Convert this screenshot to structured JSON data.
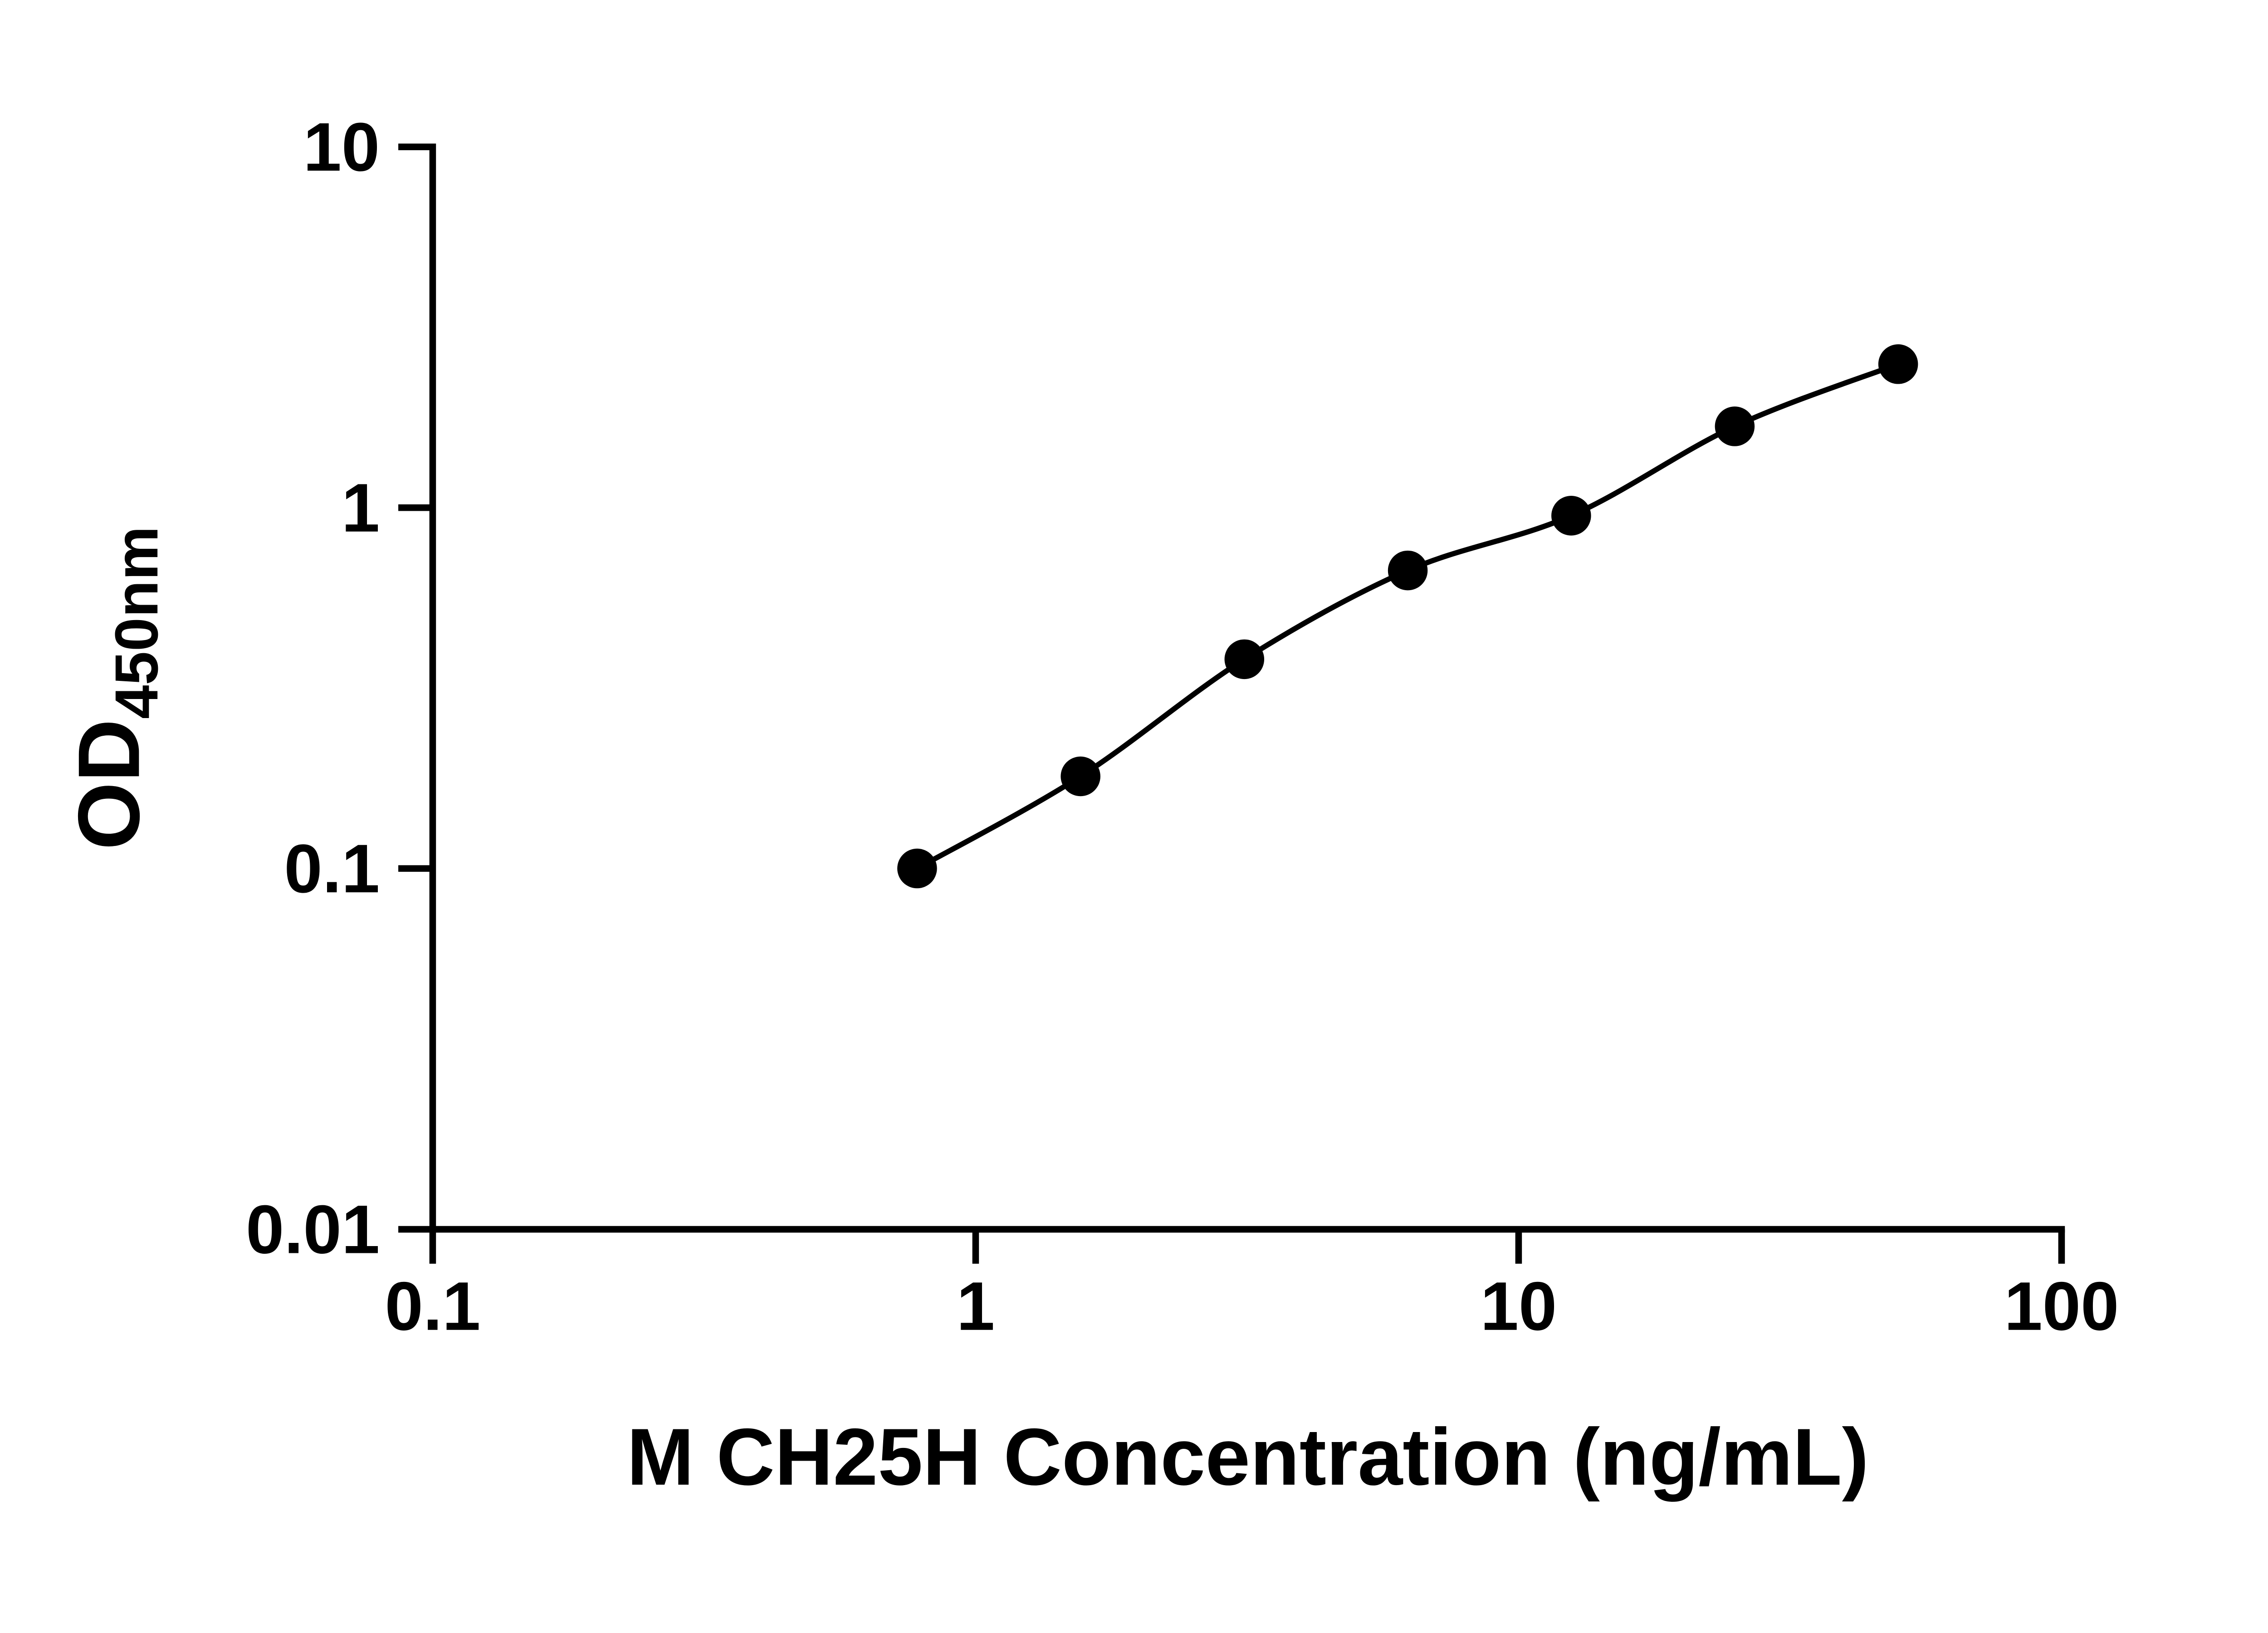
{
  "chart_data": {
    "type": "scatter",
    "title": "",
    "xlabel": "M CH25H Concentration (ng/mL)",
    "ylabel_main": "OD",
    "ylabel_sub": "450nm",
    "x_scale": "log",
    "y_scale": "log",
    "xlim": [
      0.1,
      100
    ],
    "ylim": [
      0.01,
      10
    ],
    "x_ticks": [
      0.1,
      1,
      10,
      100
    ],
    "x_tick_labels": [
      "0.1",
      "1",
      "10",
      "100"
    ],
    "y_ticks": [
      0.01,
      0.1,
      1,
      10
    ],
    "y_tick_labels": [
      "0.01",
      "0.1",
      "1",
      "10"
    ],
    "grid": false,
    "legend": "none",
    "marker_color": "#000000",
    "line_color": "#000000",
    "background": "#ffffff",
    "series": [
      {
        "x": [
          0.78,
          1.56,
          3.125,
          6.25,
          12.5,
          25,
          50
        ],
        "y": [
          0.1,
          0.18,
          0.38,
          0.67,
          0.95,
          1.68,
          2.5
        ],
        "marker": "circle",
        "line": "smooth"
      }
    ]
  }
}
